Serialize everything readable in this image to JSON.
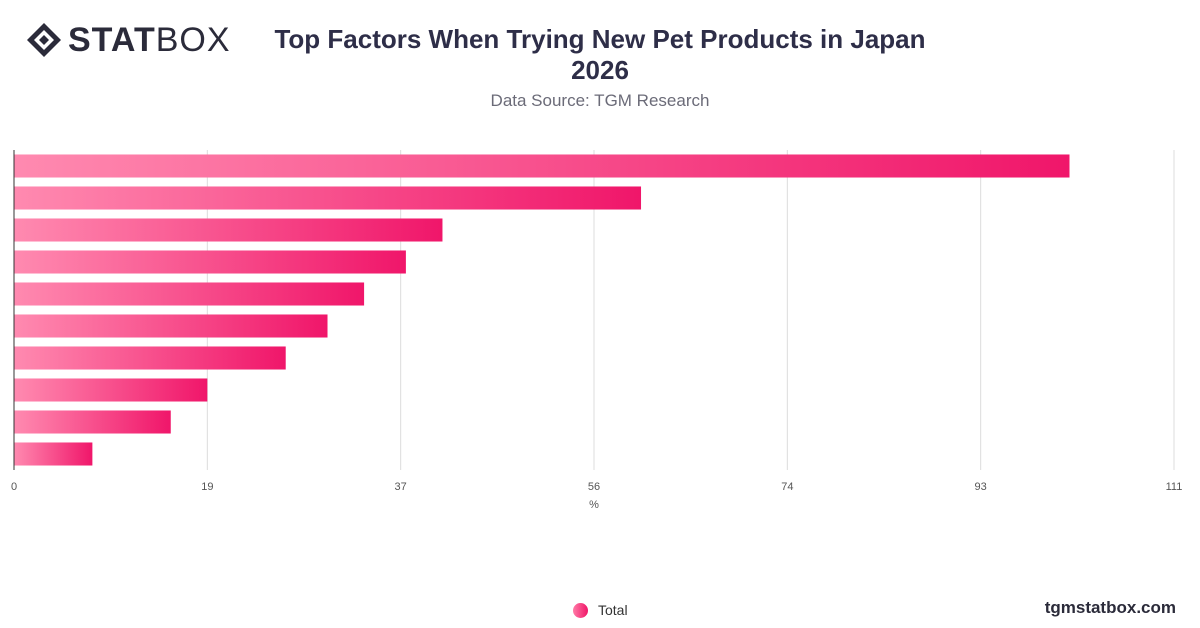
{
  "logo": {
    "text_bold": "STAT",
    "text_light": "BOX"
  },
  "header": {
    "title_line1": "Top Factors When Trying New Pet Products in Japan",
    "title_line2": "2026",
    "subtitle": "Data Source: TGM Research"
  },
  "footer": {
    "watermark": "tgmstatbox.com"
  },
  "colors": {
    "bar_start": "#ff8ab0",
    "bar_end": "#f0166a",
    "grid": "#dcdcdc",
    "axis": "#333333"
  },
  "chart_data": {
    "type": "bar",
    "orientation": "horizontal",
    "title": "Top Factors When Trying New Pet Products in Japan 2026",
    "subtitle": "Data Source: TGM Research",
    "categories": [
      "",
      "",
      "",
      "",
      "",
      "",
      "",
      "",
      "",
      ""
    ],
    "series": [
      {
        "name": "Total",
        "values": [
          101,
          60,
          41,
          37.5,
          33.5,
          30,
          26,
          18.5,
          15,
          7.5
        ]
      }
    ],
    "xlabel": "%",
    "ylabel": "",
    "xlim": [
      0,
      111
    ],
    "xticks": [
      "0",
      "19",
      "37",
      "56",
      "74",
      "93",
      "111"
    ],
    "xtick_values": [
      0,
      18.5,
      37,
      55.5,
      74,
      92.5,
      111
    ],
    "grid": true,
    "legend": {
      "position": "bottom-center",
      "entries": [
        "Total"
      ]
    }
  }
}
